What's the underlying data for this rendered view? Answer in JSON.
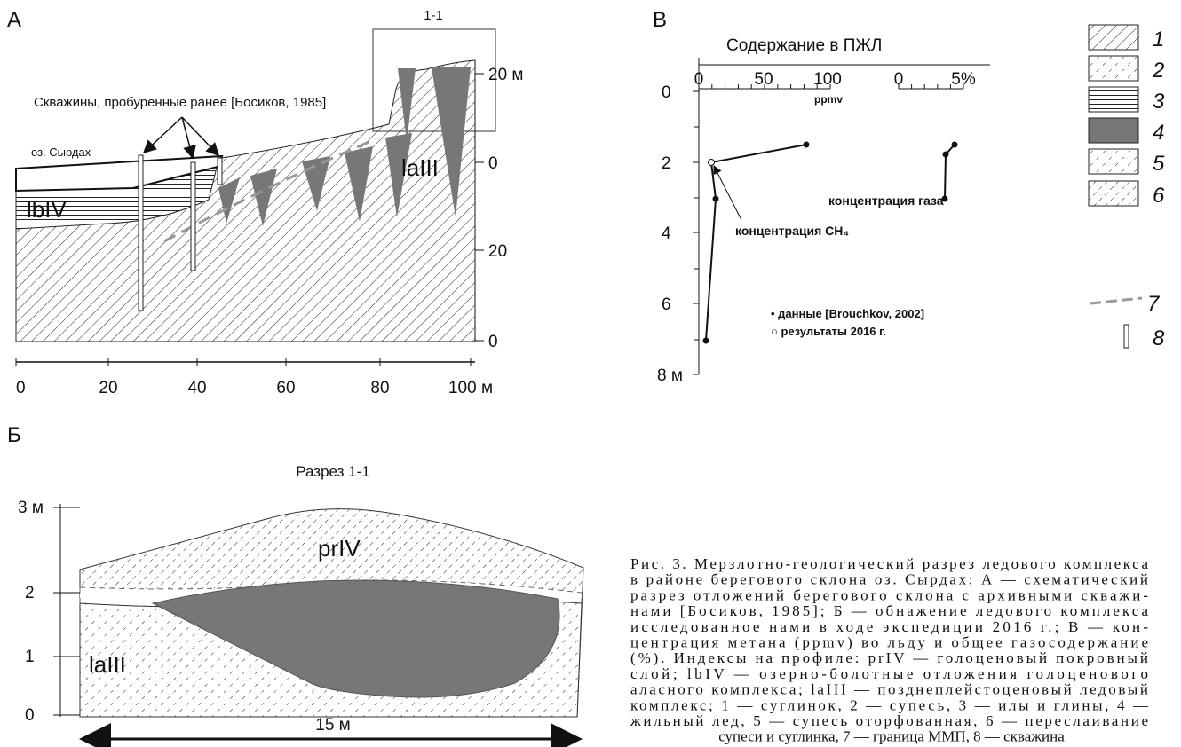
{
  "panel_a": {
    "label": "А",
    "inset_label": "1-1",
    "right_axis_ticks": [
      "20 м",
      "0",
      "20",
      "0"
    ],
    "x_axis_ticks": [
      "0",
      "20",
      "40",
      "60",
      "80",
      "100 м"
    ],
    "boreholes_note": "Скважины, пробуренные ранее [Босиков, 1985]",
    "lake": "оз. Сырдах",
    "unit_left": "lbIV",
    "unit_right": "laIII"
  },
  "panel_b": {
    "label": "В",
    "title": "Содержание в ПЖЛ",
    "x1_ticks": [
      "0",
      "50",
      "100"
    ],
    "x1_unit": "ppmv",
    "x2_ticks": [
      "0",
      "5%"
    ],
    "y_ticks": [
      "0",
      "2",
      "4",
      "6",
      "8 м"
    ],
    "gas_note": "концентрация газа",
    "ch4_note": "концентрация CH₄",
    "legend": [
      "• данные [Brouchkov, 2002]",
      "○ результаты 2016 г."
    ]
  },
  "legend": [
    "1",
    "2",
    "3",
    "4",
    "5",
    "6",
    "7",
    "8"
  ],
  "panel_b2": {
    "label": "Б",
    "title": "Разрез 1-1",
    "y_ticks": [
      "3 м",
      "2",
      "1",
      "0"
    ],
    "unit_top": "prIV",
    "unit_bottom": "laIII",
    "scale": "15 м"
  },
  "caption": [
    "Рис. 3. Мерзлотно-геологический разрез ледового комплекса",
    "в районе берегового склона оз. Сырдах: А — схематический",
    "разрез отложений берегового склона с архивными скважи-",
    "нами [Босиков, 1985]; Б — обнажение ледового комплекса",
    "исследованное нами в ходе экспедиции 2016 г.; В — кон-",
    "центрация метана (ppmv) во льду и общее газосодержание",
    "(%). Индексы на профиле: prIV — голоценовый покровный",
    "слой; lbIV — озерно-болотные отложения голоценового",
    "аласного комплекса; laIII — позднеплейстоценовый ледовый",
    "комплекс; 1 — суглинок, 2 — супесь, 3 — илы и глины, 4 —",
    "жильный лед, 5 — супесь оторфованная, 6 — переслаивание",
    "супеси и суглинка, 7 — граница ММП, 8 — скважина"
  ]
}
